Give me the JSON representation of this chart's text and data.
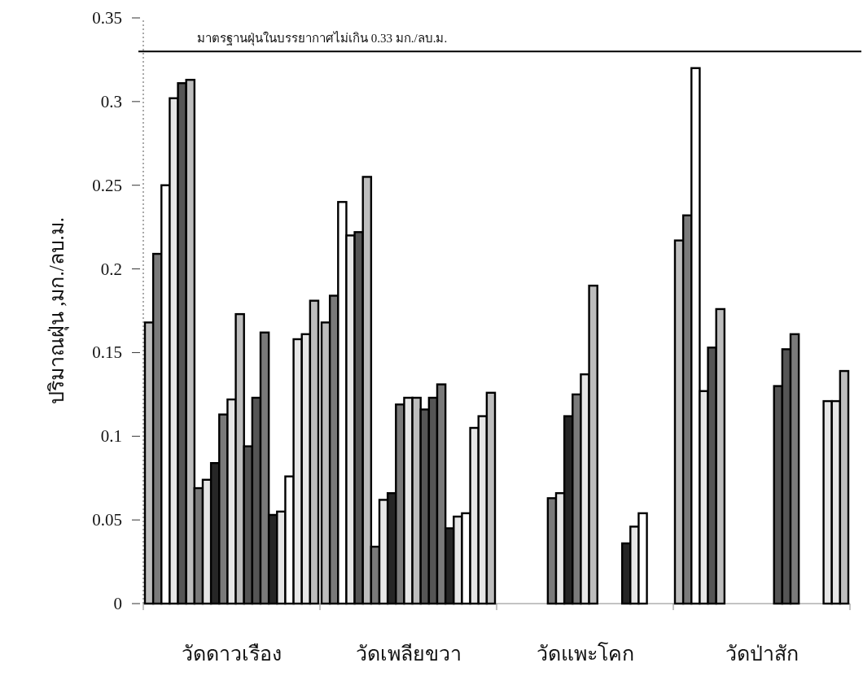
{
  "chart_data": {
    "type": "bar",
    "ylabel": "ปริมาณฝุ่น ,มก./ลบ.ม.",
    "categories": [
      "วัดดาวเรือง",
      "วัดเพลียขวา",
      "วัดแพะโคก",
      "วัดป่าสัก"
    ],
    "ylim": [
      0,
      0.35
    ],
    "yticks": [
      0,
      0.05,
      0.1,
      0.15,
      0.2,
      0.25,
      0.3,
      0.35
    ],
    "ref_lines": [
      {
        "axis": "y",
        "value": 0.33,
        "label": "มาตรฐานฝุ่นในบรรยากาศไม่เกิน 0.33 มก./ลบ.ม.",
        "color": "#000000"
      }
    ],
    "series": [
      {
        "color": "#bdbdbd",
        "values": [
          0.168,
          0.168,
          null,
          0.217
        ]
      },
      {
        "color": "#7a7a7a",
        "values": [
          0.209,
          0.184,
          null,
          0.232
        ]
      },
      {
        "color": "#ffffff",
        "values": [
          0.25,
          0.24,
          null,
          0.32
        ]
      },
      {
        "color": "#e6e6e6",
        "values": [
          0.302,
          0.22,
          null,
          0.127
        ]
      },
      {
        "color": "#555555",
        "values": [
          0.311,
          0.222,
          null,
          0.153
        ]
      },
      {
        "color": "#bdbdbd",
        "values": [
          0.313,
          0.255,
          null,
          0.176
        ]
      },
      {
        "color": "#7a7a7a",
        "values": [
          0.069,
          0.034,
          0.063,
          null
        ]
      },
      {
        "color": "#e6e6e6",
        "values": [
          0.074,
          0.062,
          0.066,
          null
        ]
      },
      {
        "color": "#262626",
        "values": [
          0.084,
          0.066,
          0.112,
          null
        ]
      },
      {
        "color": "#7a7a7a",
        "values": [
          0.113,
          0.119,
          0.125,
          null
        ]
      },
      {
        "color": "#e6e6e6",
        "values": [
          0.122,
          0.123,
          0.137,
          null
        ]
      },
      {
        "color": "#bdbdbd",
        "values": [
          0.173,
          0.123,
          0.19,
          null
        ]
      },
      {
        "color": "#555555",
        "values": [
          0.094,
          0.116,
          null,
          0.13
        ]
      },
      {
        "color": "#555555",
        "values": [
          0.123,
          0.123,
          null,
          0.152
        ]
      },
      {
        "color": "#7a7a7a",
        "values": [
          0.162,
          0.131,
          null,
          0.161
        ]
      },
      {
        "color": "#262626",
        "values": [
          0.053,
          0.045,
          0.036,
          null
        ]
      },
      {
        "color": "#e6e6e6",
        "values": [
          0.055,
          0.052,
          0.046,
          null
        ]
      },
      {
        "color": "#ffffff",
        "values": [
          0.076,
          0.054,
          0.054,
          null
        ]
      },
      {
        "color": "#e6e6e6",
        "values": [
          0.158,
          0.105,
          null,
          0.121
        ]
      },
      {
        "color": "#e6e6e6",
        "values": [
          0.161,
          0.112,
          null,
          0.121
        ]
      },
      {
        "color": "#bdbdbd",
        "values": [
          0.181,
          0.126,
          null,
          0.139
        ]
      }
    ]
  }
}
